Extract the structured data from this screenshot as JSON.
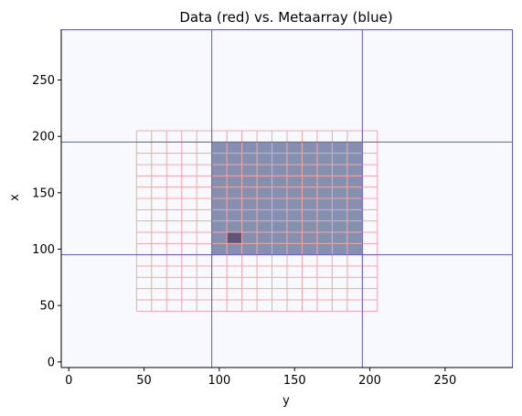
{
  "chart_data": {
    "type": "heatmap",
    "title": "Data (red) vs. Metaarray (blue)",
    "xlabel": "y",
    "ylabel": "x",
    "xlim": [
      -5,
      295
    ],
    "ylim": [
      -5,
      295
    ],
    "xticks": [
      0,
      50,
      100,
      150,
      200,
      250
    ],
    "yticks": [
      0,
      50,
      100,
      150,
      200,
      250
    ],
    "xtick_labels": [
      "0",
      "50",
      "100",
      "150",
      "200",
      "250"
    ],
    "ytick_labels": [
      "0",
      "50",
      "100",
      "150",
      "200",
      "250"
    ],
    "grid": false,
    "colors": {
      "data_grid": "#f4a6a6",
      "meta_lines": "#5a5ae0",
      "meta_block": "#8590b0",
      "highlight_cell": "#5e5678",
      "background": "#f8f9fe"
    },
    "data_grid": {
      "y_start": 45,
      "y_end": 205,
      "y_step": 10,
      "x_start": 45,
      "x_end": 205,
      "x_step": 10
    },
    "metaarray": {
      "line_positions": [
        95,
        195
      ],
      "block": {
        "y": [
          95,
          195
        ],
        "x": [
          95,
          195
        ]
      },
      "highlight_cell": {
        "y": [
          105,
          115
        ],
        "x": [
          105,
          115
        ]
      }
    }
  }
}
